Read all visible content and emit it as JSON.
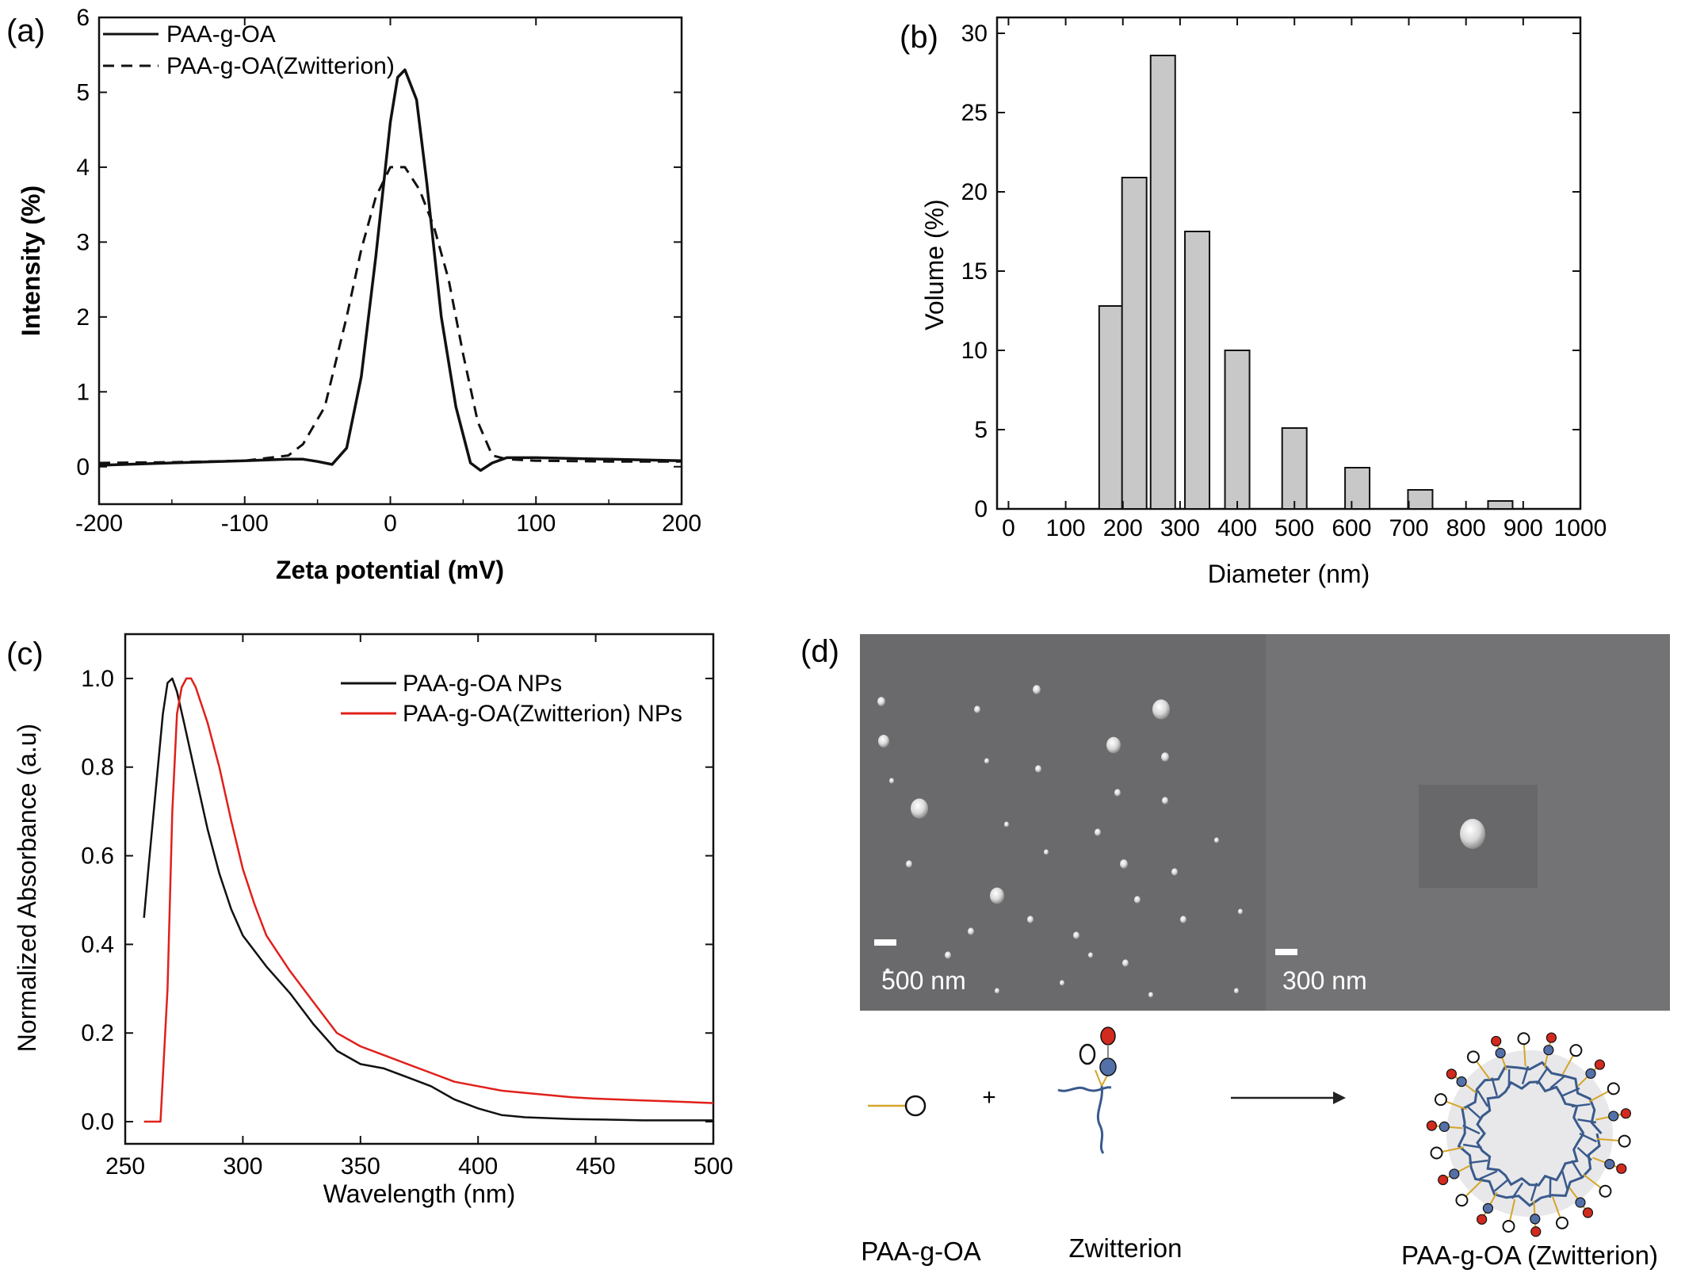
{
  "panels": {
    "a": {
      "label": "(a)",
      "xlabel": "Zeta potential (mV)",
      "ylabel": "Intensity (%)",
      "legend": [
        "PAA-g-OA",
        "PAA-g-OA(Zwitterion)"
      ]
    },
    "b": {
      "label": "(b)",
      "xlabel": "Diameter (nm)",
      "ylabel": "Volume (%)"
    },
    "c": {
      "label": "(c)",
      "xlabel": "Wavelength (nm)",
      "ylabel": "Normalized Absorbance (a.u)",
      "legend": [
        "PAA-g-OA NPs",
        "PAA-g-OA(Zwitterion) NPs"
      ]
    },
    "d": {
      "label": "(d)",
      "scalebars": [
        "500 nm",
        "300 nm"
      ],
      "plus": "+",
      "scheme_labels": [
        "PAA-g-OA",
        "Zwitterion",
        "PAA-g-OA (Zwitterion)"
      ]
    }
  },
  "colors": {
    "axis": "#111111",
    "bar_fill": "#c8c8c8",
    "series_black": "#111111",
    "series_red": "#e0201b",
    "sem_bg": "#6e6e70",
    "particle": "#e6e6e6",
    "polymer": "#3a5a8c"
  },
  "chart_data": [
    {
      "type": "line",
      "panel": "a",
      "xlabel": "Zeta potential (mV)",
      "ylabel": "Intensity (%)",
      "xlim": [
        -200,
        200
      ],
      "ylim": [
        -0.5,
        6
      ],
      "xticks": [
        -200,
        -100,
        0,
        100,
        200
      ],
      "yticks": [
        0,
        1,
        2,
        3,
        4,
        5,
        6
      ],
      "legend_position": "top-left",
      "series": [
        {
          "name": "PAA-g-OA",
          "style": "solid",
          "x": [
            -200,
            -150,
            -100,
            -70,
            -60,
            -50,
            -40,
            -30,
            -20,
            -10,
            0,
            5,
            10,
            18,
            25,
            35,
            45,
            55,
            62,
            70,
            80,
            100,
            150,
            200
          ],
          "y": [
            0.02,
            0.05,
            0.08,
            0.1,
            0.1,
            0.07,
            0.03,
            0.25,
            1.2,
            2.8,
            4.6,
            5.2,
            5.3,
            4.9,
            3.8,
            2.0,
            0.8,
            0.05,
            -0.05,
            0.05,
            0.12,
            0.12,
            0.1,
            0.08
          ]
        },
        {
          "name": "PAA-g-OA(Zwitterion)",
          "style": "dashed",
          "x": [
            -200,
            -150,
            -100,
            -70,
            -60,
            -45,
            -30,
            -20,
            -10,
            0,
            10,
            20,
            30,
            40,
            50,
            60,
            70,
            80,
            100,
            150,
            200
          ],
          "y": [
            0.05,
            0.06,
            0.08,
            0.15,
            0.3,
            0.8,
            2.0,
            2.9,
            3.6,
            4.0,
            4.0,
            3.7,
            3.2,
            2.5,
            1.5,
            0.6,
            0.15,
            0.1,
            0.08,
            0.07,
            0.07
          ]
        }
      ]
    },
    {
      "type": "bar",
      "panel": "b",
      "xlabel": "Diameter (nm)",
      "ylabel": "Volume (%)",
      "xlim": [
        -20,
        1000
      ],
      "ylim": [
        0,
        31
      ],
      "xticks": [
        0,
        100,
        200,
        300,
        400,
        500,
        600,
        700,
        800,
        900,
        1000
      ],
      "yticks": [
        0,
        5,
        10,
        15,
        20,
        25,
        30
      ],
      "x": [
        180,
        220,
        270,
        330,
        400,
        500,
        610,
        720,
        860
      ],
      "values": [
        12.8,
        20.9,
        28.6,
        17.5,
        10.0,
        5.1,
        2.6,
        1.2,
        0.5
      ]
    },
    {
      "type": "line",
      "panel": "c",
      "xlabel": "Wavelength (nm)",
      "ylabel": "Normalized Absorbance (a.u)",
      "xlim": [
        250,
        500
      ],
      "ylim": [
        -0.05,
        1.1
      ],
      "xticks": [
        250,
        300,
        350,
        400,
        450,
        500
      ],
      "yticks": [
        0.0,
        0.2,
        0.4,
        0.6,
        0.8,
        1.0
      ],
      "legend_position": "top-right",
      "series": [
        {
          "name": "PAA-g-OA NPs",
          "color": "#111111",
          "x": [
            258,
            260,
            263,
            266,
            268,
            270,
            272,
            275,
            280,
            285,
            290,
            295,
            300,
            310,
            320,
            330,
            340,
            350,
            360,
            370,
            380,
            390,
            400,
            410,
            420,
            430,
            440,
            450,
            460,
            470,
            480,
            490,
            500
          ],
          "y": [
            0.46,
            0.58,
            0.75,
            0.92,
            0.99,
            1.0,
            0.97,
            0.9,
            0.78,
            0.66,
            0.56,
            0.48,
            0.42,
            0.35,
            0.29,
            0.22,
            0.16,
            0.13,
            0.12,
            0.1,
            0.08,
            0.05,
            0.03,
            0.015,
            0.01,
            0.008,
            0.006,
            0.005,
            0.004,
            0.003,
            0.003,
            0.003,
            0.003
          ]
        },
        {
          "name": "PAA-g-OA(Zwitterion) NPs",
          "color": "#e0201b",
          "x": [
            258,
            262,
            265,
            268,
            270,
            272,
            274,
            276,
            278,
            280,
            285,
            290,
            295,
            300,
            305,
            310,
            320,
            330,
            340,
            350,
            360,
            370,
            380,
            390,
            400,
            410,
            420,
            430,
            440,
            450,
            460,
            470,
            480,
            490,
            500
          ],
          "y": [
            0.0,
            0.0,
            0.0,
            0.3,
            0.7,
            0.92,
            0.98,
            1.0,
            1.0,
            0.98,
            0.9,
            0.8,
            0.68,
            0.57,
            0.49,
            0.42,
            0.34,
            0.27,
            0.2,
            0.17,
            0.15,
            0.13,
            0.11,
            0.09,
            0.08,
            0.07,
            0.065,
            0.06,
            0.055,
            0.052,
            0.05,
            0.048,
            0.046,
            0.044,
            0.042
          ]
        }
      ]
    }
  ]
}
